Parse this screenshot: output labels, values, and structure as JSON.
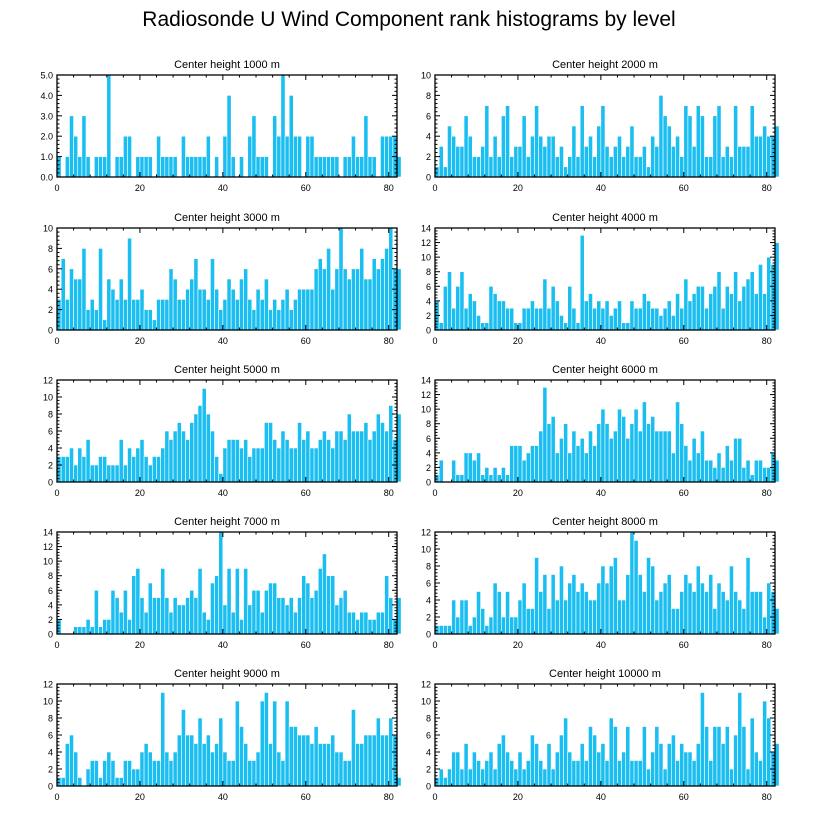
{
  "page_title": "Radiosonde U Wind Component rank histograms by level",
  "bar_color": "#1bbef0",
  "bar_edge_color": "#ffffff",
  "axis_color": "#000000",
  "chart_data": [
    {
      "type": "bar",
      "title": "Center height 1000 m",
      "xlabel": "",
      "ylabel": "",
      "xlim": [
        0,
        82
      ],
      "ylim": [
        0,
        5
      ],
      "xticks": [
        0,
        20,
        40,
        60,
        80
      ],
      "xtick_labels": [
        "0",
        "20",
        "40",
        "60",
        "80"
      ],
      "yticks": [
        0,
        1,
        2,
        3,
        4,
        5
      ],
      "ytick_labels": [
        "0.0",
        "1.0",
        "2.0",
        "3.0",
        "4.0",
        "5.0"
      ],
      "values": [
        1,
        0,
        1,
        3,
        2,
        1,
        3,
        1,
        0,
        1,
        1,
        1,
        5,
        0,
        1,
        1,
        2,
        2,
        0,
        1,
        1,
        1,
        1,
        0,
        2,
        1,
        1,
        1,
        1,
        0,
        2,
        1,
        1,
        1,
        1,
        1,
        2,
        0,
        1,
        0,
        2,
        4,
        1,
        0,
        1,
        0,
        2,
        3,
        1,
        1,
        1,
        0,
        3,
        2,
        5,
        2,
        4,
        2,
        2,
        0,
        2,
        2,
        1,
        1,
        1,
        1,
        1,
        1,
        0,
        1,
        1,
        2,
        1,
        1,
        3,
        1,
        1,
        0,
        2,
        2,
        2,
        2,
        1
      ]
    },
    {
      "type": "bar",
      "title": "Center height 2000 m",
      "xlabel": "",
      "ylabel": "",
      "xlim": [
        0,
        82
      ],
      "ylim": [
        0,
        10
      ],
      "xticks": [
        0,
        20,
        40,
        60,
        80
      ],
      "xtick_labels": [
        "0",
        "20",
        "40",
        "60",
        "80"
      ],
      "yticks": [
        0,
        2,
        4,
        6,
        8,
        10
      ],
      "ytick_labels": [
        "0",
        "2",
        "4",
        "6",
        "8",
        "10"
      ],
      "values": [
        1,
        3,
        1,
        5,
        4,
        3,
        3,
        6,
        4,
        2,
        2,
        3,
        7,
        2,
        4,
        2,
        6,
        7,
        2,
        3,
        3,
        6,
        2,
        4,
        7,
        4,
        3,
        4,
        4,
        2,
        3,
        1,
        2,
        5,
        2,
        7,
        3,
        4,
        2,
        5,
        7,
        3,
        2,
        3,
        4,
        2,
        3,
        5,
        2,
        2,
        3,
        1,
        4,
        3,
        8,
        6,
        5,
        3,
        4,
        2,
        7,
        6,
        3,
        7,
        6,
        2,
        2,
        6,
        7,
        2,
        3,
        2,
        7,
        3,
        3,
        3,
        7,
        4,
        4,
        5,
        4,
        4,
        5
      ]
    },
    {
      "type": "bar",
      "title": "Center height 3000 m",
      "xlabel": "",
      "ylabel": "",
      "xlim": [
        0,
        82
      ],
      "ylim": [
        0,
        10
      ],
      "xticks": [
        0,
        20,
        40,
        60,
        80
      ],
      "xtick_labels": [
        "0",
        "20",
        "40",
        "60",
        "80"
      ],
      "yticks": [
        0,
        2,
        4,
        6,
        8,
        10
      ],
      "ytick_labels": [
        "0",
        "2",
        "4",
        "6",
        "8",
        "10"
      ],
      "values": [
        3,
        7,
        3,
        6,
        5,
        5,
        8,
        2,
        3,
        2,
        8,
        1,
        5,
        4,
        3,
        5,
        3,
        9,
        3,
        3,
        4,
        2,
        2,
        1,
        3,
        3,
        3,
        6,
        5,
        3,
        3,
        4,
        5,
        7,
        4,
        4,
        3,
        7,
        4,
        2,
        3,
        5,
        4,
        3,
        5,
        6,
        3,
        2,
        4,
        3,
        5,
        2,
        3,
        2,
        3,
        4,
        2,
        3,
        4,
        4,
        4,
        4,
        6,
        7,
        6,
        8,
        4,
        6,
        10,
        6,
        5,
        6,
        6,
        8,
        5,
        5,
        7,
        6,
        7,
        8,
        10,
        6,
        6
      ]
    },
    {
      "type": "bar",
      "title": "Center height 4000 m",
      "xlabel": "",
      "ylabel": "",
      "xlim": [
        0,
        82
      ],
      "ylim": [
        0,
        14
      ],
      "xticks": [
        0,
        20,
        40,
        60,
        80
      ],
      "xtick_labels": [
        "0",
        "20",
        "40",
        "60",
        "80"
      ],
      "yticks": [
        0,
        2,
        4,
        6,
        8,
        10,
        12,
        14
      ],
      "ytick_labels": [
        "0",
        "2",
        "4",
        "6",
        "8",
        "10",
        "12",
        "14"
      ],
      "values": [
        4,
        1,
        6,
        8,
        3,
        6,
        8,
        3,
        5,
        4,
        2,
        1,
        1,
        6,
        5,
        4,
        4,
        3,
        3,
        1,
        1,
        3,
        3,
        4,
        3,
        3,
        7,
        3,
        6,
        4,
        2,
        1,
        6,
        3,
        1,
        13,
        4,
        5,
        3,
        4,
        3,
        4,
        2,
        3,
        4,
        1,
        1,
        4,
        3,
        3,
        5,
        4,
        3,
        3,
        2,
        3,
        4,
        2,
        5,
        3,
        7,
        4,
        5,
        6,
        6,
        3,
        5,
        6,
        8,
        3,
        6,
        5,
        8,
        4,
        6,
        7,
        8,
        5,
        9,
        5,
        10,
        9,
        12
      ]
    },
    {
      "type": "bar",
      "title": "Center height 5000 m",
      "xlabel": "",
      "ylabel": "",
      "xlim": [
        0,
        82
      ],
      "ylim": [
        0,
        12
      ],
      "xticks": [
        0,
        20,
        40,
        60,
        80
      ],
      "xtick_labels": [
        "0",
        "20",
        "40",
        "60",
        "80"
      ],
      "yticks": [
        0,
        2,
        4,
        6,
        8,
        10,
        12
      ],
      "ytick_labels": [
        "0",
        "2",
        "4",
        "6",
        "8",
        "10",
        "12"
      ],
      "values": [
        3,
        3,
        3,
        4,
        2,
        4,
        3,
        5,
        2,
        2,
        3,
        3,
        2,
        2,
        2,
        5,
        2,
        4,
        3,
        4,
        5,
        3,
        2,
        3,
        3,
        4,
        6,
        5,
        6,
        7,
        6,
        5,
        7,
        8,
        9,
        11,
        8,
        6,
        3,
        1,
        4,
        5,
        5,
        5,
        4,
        5,
        3,
        4,
        4,
        4,
        7,
        7,
        5,
        4,
        6,
        5,
        4,
        4,
        7,
        5,
        6,
        4,
        4,
        5,
        6,
        5,
        4,
        6,
        6,
        5,
        8,
        6,
        6,
        6,
        7,
        5,
        6,
        8,
        7,
        6,
        9,
        5,
        8
      ]
    },
    {
      "type": "bar",
      "title": "Center height 6000 m",
      "xlabel": "",
      "ylabel": "",
      "xlim": [
        0,
        82
      ],
      "ylim": [
        0,
        14
      ],
      "xticks": [
        0,
        20,
        40,
        60,
        80
      ],
      "xtick_labels": [
        "0",
        "20",
        "40",
        "60",
        "80"
      ],
      "yticks": [
        0,
        2,
        4,
        6,
        8,
        10,
        12,
        14
      ],
      "ytick_labels": [
        "0",
        "2",
        "4",
        "6",
        "8",
        "10",
        "12",
        "14"
      ],
      "values": [
        1,
        3,
        0,
        0,
        3,
        1,
        1,
        4,
        4,
        3,
        4,
        1,
        2,
        1,
        2,
        1,
        2,
        1,
        5,
        5,
        5,
        3,
        4,
        5,
        5,
        7,
        13,
        8,
        9,
        4,
        6,
        8,
        4,
        7,
        5,
        6,
        4,
        7,
        5,
        8,
        10,
        8,
        6,
        7,
        10,
        9,
        6,
        8,
        10,
        7,
        11,
        8,
        9,
        7,
        7,
        7,
        7,
        4,
        11,
        8,
        5,
        3,
        6,
        4,
        7,
        3,
        3,
        2,
        4,
        2,
        5,
        3,
        6,
        6,
        2,
        3,
        1,
        3,
        3,
        2,
        2,
        4,
        3
      ]
    },
    {
      "type": "bar",
      "title": "Center height 7000 m",
      "xlabel": "",
      "ylabel": "",
      "xlim": [
        0,
        82
      ],
      "ylim": [
        0,
        14
      ],
      "xticks": [
        0,
        20,
        40,
        60,
        80
      ],
      "xtick_labels": [
        "0",
        "20",
        "40",
        "60",
        "80"
      ],
      "yticks": [
        0,
        2,
        4,
        6,
        8,
        10,
        12,
        14
      ],
      "ytick_labels": [
        "0",
        "2",
        "4",
        "6",
        "8",
        "10",
        "12",
        "14"
      ],
      "values": [
        2,
        0,
        0,
        0,
        1,
        1,
        1,
        2,
        1,
        6,
        1,
        2,
        2,
        6,
        5,
        3,
        6,
        2,
        8,
        9,
        5,
        3,
        7,
        5,
        5,
        9,
        5,
        3,
        5,
        4,
        4,
        5,
        6,
        5,
        9,
        3,
        2,
        7,
        8,
        14,
        4,
        9,
        3,
        9,
        2,
        9,
        4,
        6,
        6,
        3,
        6,
        7,
        7,
        5,
        5,
        4,
        5,
        3,
        5,
        8,
        7,
        5,
        6,
        9,
        11,
        8,
        8,
        4,
        5,
        6,
        3,
        3,
        2,
        3,
        3,
        2,
        2,
        3,
        3,
        8,
        5,
        2,
        5
      ]
    },
    {
      "type": "bar",
      "title": "Center height 8000 m",
      "xlabel": "",
      "ylabel": "",
      "xlim": [
        0,
        82
      ],
      "ylim": [
        0,
        12
      ],
      "xticks": [
        0,
        20,
        40,
        60,
        80
      ],
      "xtick_labels": [
        "0",
        "20",
        "40",
        "60",
        "80"
      ],
      "yticks": [
        0,
        2,
        4,
        6,
        8,
        10,
        12
      ],
      "ytick_labels": [
        "0",
        "2",
        "4",
        "6",
        "8",
        "10",
        "12"
      ],
      "values": [
        1,
        1,
        1,
        1,
        4,
        2,
        4,
        4,
        1,
        2,
        5,
        3,
        1,
        2,
        6,
        5,
        2,
        5,
        2,
        2,
        4,
        6,
        3,
        3,
        9,
        5,
        7,
        3,
        7,
        4,
        8,
        4,
        6,
        7,
        5,
        6,
        5,
        4,
        4,
        6,
        8,
        6,
        8,
        9,
        4,
        4,
        7,
        12,
        11,
        7,
        5,
        9,
        8,
        4,
        5,
        6,
        7,
        3,
        3,
        5,
        7,
        6,
        5,
        8,
        6,
        5,
        7,
        3,
        6,
        5,
        4,
        8,
        5,
        4,
        3,
        9,
        5,
        5,
        5,
        2,
        6,
        5,
        3
      ]
    },
    {
      "type": "bar",
      "title": "Center height 9000 m",
      "xlabel": "",
      "ylabel": "",
      "xlim": [
        0,
        82
      ],
      "ylim": [
        0,
        12
      ],
      "xticks": [
        0,
        20,
        40,
        60,
        80
      ],
      "xtick_labels": [
        "0",
        "20",
        "40",
        "60",
        "80"
      ],
      "yticks": [
        0,
        2,
        4,
        6,
        8,
        10,
        12
      ],
      "ytick_labels": [
        "0",
        "2",
        "4",
        "6",
        "8",
        "10",
        "12"
      ],
      "values": [
        1,
        1,
        5,
        6,
        4,
        1,
        0,
        2,
        3,
        3,
        1,
        3,
        4,
        3,
        1,
        1,
        3,
        3,
        2,
        2,
        4,
        5,
        4,
        3,
        3,
        11,
        4,
        3,
        4,
        6,
        9,
        6,
        6,
        5,
        8,
        5,
        6,
        4,
        5,
        8,
        4,
        3,
        3,
        10,
        7,
        5,
        3,
        3,
        4,
        10,
        11,
        5,
        10,
        4,
        3,
        10,
        7,
        7,
        6,
        6,
        6,
        5,
        7,
        5,
        5,
        5,
        6,
        4,
        4,
        3,
        3,
        9,
        5,
        5,
        6,
        6,
        6,
        8,
        6,
        6,
        8,
        6,
        1
      ]
    },
    {
      "type": "bar",
      "title": "Center height 10000 m",
      "xlabel": "",
      "ylabel": "",
      "xlim": [
        0,
        82
      ],
      "ylim": [
        0,
        12
      ],
      "xticks": [
        0,
        20,
        40,
        60,
        80
      ],
      "xtick_labels": [
        "0",
        "20",
        "40",
        "60",
        "80"
      ],
      "yticks": [
        0,
        2,
        4,
        6,
        8,
        10,
        12
      ],
      "ytick_labels": [
        "0",
        "2",
        "4",
        "6",
        "8",
        "10",
        "12"
      ],
      "values": [
        1,
        2,
        1,
        2,
        4,
        4,
        2,
        5,
        2,
        4,
        3,
        2,
        3,
        4,
        2,
        5,
        6,
        4,
        3,
        2,
        4,
        2,
        3,
        6,
        5,
        3,
        2,
        5,
        2,
        4,
        6,
        8,
        4,
        3,
        3,
        5,
        3,
        7,
        6,
        4,
        5,
        3,
        8,
        7,
        3,
        4,
        7,
        3,
        3,
        3,
        7,
        2,
        4,
        7,
        5,
        2,
        5,
        6,
        3,
        5,
        4,
        4,
        3,
        5,
        11,
        7,
        3,
        7,
        7,
        5,
        7,
        2,
        6,
        11,
        7,
        2,
        8,
        4,
        3,
        10,
        8,
        4,
        5
      ]
    }
  ]
}
